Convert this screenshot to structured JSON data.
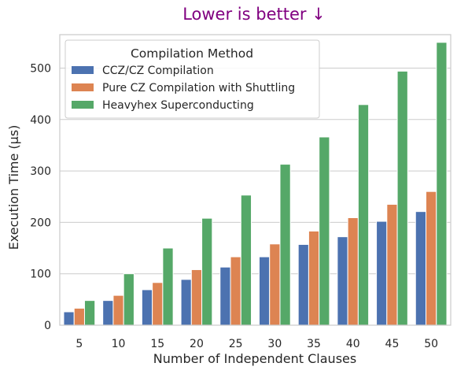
{
  "chart_data": {
    "type": "bar",
    "title": "Lower is better ↓",
    "title_color": "#800080",
    "xlabel": "Number of Independent Clauses",
    "ylabel": "Execution Time (µs)",
    "categories": [
      "5",
      "10",
      "15",
      "20",
      "25",
      "30",
      "35",
      "40",
      "45",
      "50"
    ],
    "ylim": [
      0,
      565
    ],
    "yticks": [
      0,
      100,
      200,
      300,
      400,
      500
    ],
    "grid": "horizontal",
    "legend": {
      "title": "Compilation Method",
      "placement": "top-left"
    },
    "series": [
      {
        "name": "CCZ/CZ Compilation",
        "color": "#4c72b0",
        "values": [
          26,
          48,
          69,
          89,
          113,
          133,
          157,
          172,
          202,
          221
        ]
      },
      {
        "name": "Pure CZ Compilation with Shuttling",
        "color": "#dd8452",
        "values": [
          33,
          58,
          83,
          108,
          133,
          158,
          183,
          209,
          235,
          260
        ]
      },
      {
        "name": "Heavyhex Superconducting",
        "color": "#55a868",
        "values": [
          48,
          100,
          150,
          208,
          253,
          313,
          366,
          429,
          494,
          550
        ]
      }
    ]
  }
}
